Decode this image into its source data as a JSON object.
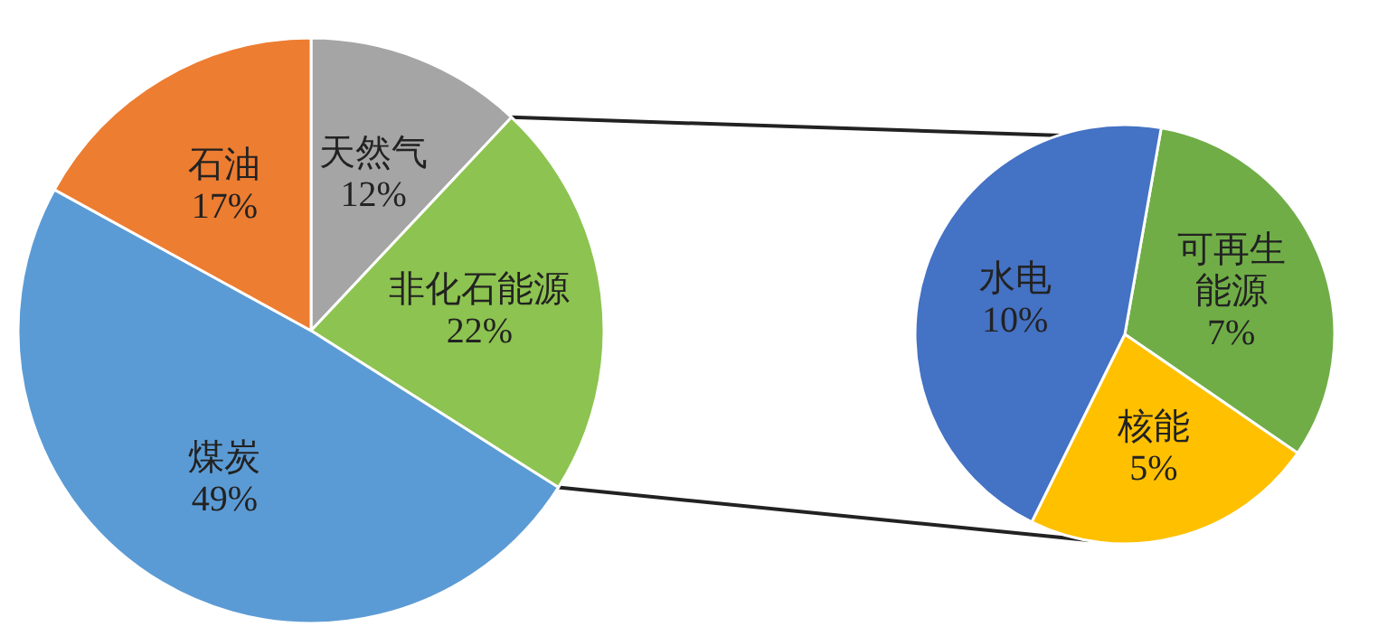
{
  "chart_data": [
    {
      "type": "pie",
      "categories": [
        "天然气",
        "非化石能源",
        "煤炭",
        "石油"
      ],
      "values": [
        12,
        22,
        49,
        17
      ],
      "value_labels": [
        "12%",
        "22%",
        "49%",
        "17%"
      ],
      "colors": [
        "#a5a5a5",
        "#8dc350",
        "#5b9bd5",
        "#ed7d31"
      ]
    },
    {
      "type": "pie",
      "categories": [
        "可再生能源",
        "核能",
        "水电"
      ],
      "values": [
        7,
        5,
        10
      ],
      "value_labels": [
        "7%",
        "5%",
        "10%"
      ],
      "colors": [
        "#70ad47",
        "#ffc000",
        "#4472c4"
      ]
    }
  ]
}
